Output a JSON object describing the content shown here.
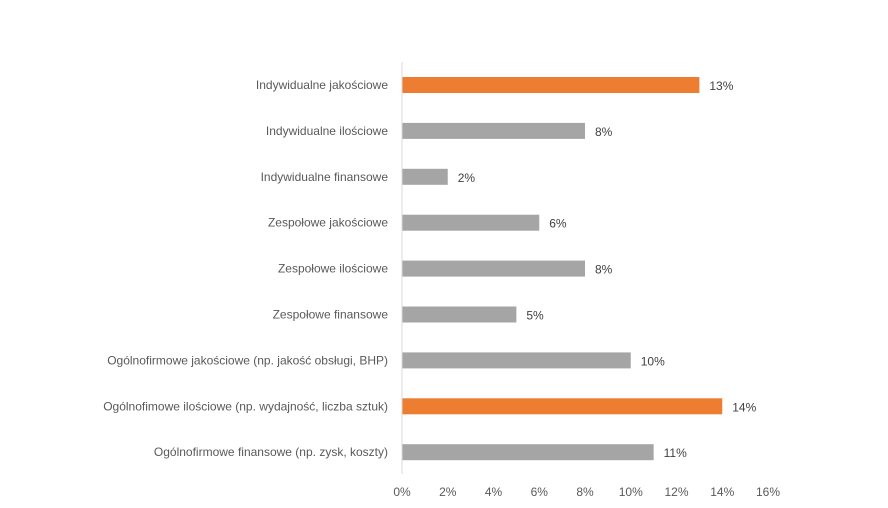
{
  "chart_data": {
    "type": "bar",
    "orientation": "horizontal",
    "categories": [
      "Indywidualne jakościowe",
      "Indywidualne ilościowe",
      "Indywidualne finansowe",
      "Zespołowe jakościowe",
      "Zespołowe ilościowe",
      "Zespołowe finansowe",
      "Ogólnofirmowe jakościowe (np. jakość obsługi, BHP)",
      "Ogólnofimowe ilościowe (np. wydajność, liczba sztuk)",
      "Ogólnofirmowe finansowe (np. zysk, koszty)"
    ],
    "values": [
      13,
      8,
      2,
      6,
      8,
      5,
      10,
      14,
      11
    ],
    "data_labels": [
      "13%",
      "8%",
      "2%",
      "6%",
      "8%",
      "5%",
      "10%",
      "14%",
      "11%"
    ],
    "highlighted": [
      true,
      false,
      false,
      false,
      false,
      false,
      false,
      true,
      false
    ],
    "xlim": [
      0,
      16
    ],
    "x_ticks": [
      "0%",
      "2%",
      "4%",
      "6%",
      "8%",
      "10%",
      "12%",
      "14%",
      "16%"
    ],
    "grid": false,
    "legend": "none",
    "colors": {
      "highlight": "#ED7D31",
      "default": "#A5A5A5",
      "axis": "#D9D9D9"
    }
  }
}
